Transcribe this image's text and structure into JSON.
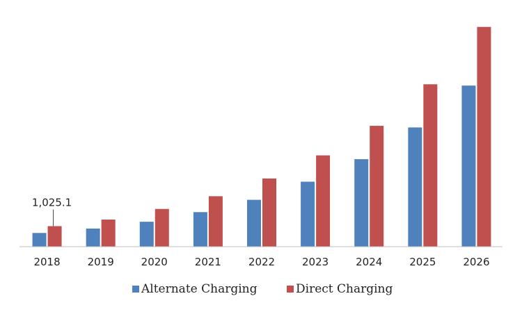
{
  "chart_data": {
    "type": "bar",
    "title": "",
    "xlabel": "",
    "ylabel": "",
    "categories": [
      "2018",
      "2019",
      "2020",
      "2021",
      "2022",
      "2023",
      "2024",
      "2025",
      "2026"
    ],
    "series": [
      {
        "name": "Alternate Charging",
        "color": "#4f81bd",
        "values": [
          685,
          905,
          1245,
          1725,
          2340,
          3245,
          4370,
          5955,
          8045
        ]
      },
      {
        "name": "Direct Charging",
        "color": "#c0504d",
        "values": [
          1025.1,
          1355,
          1885,
          2520,
          3405,
          4560,
          6035,
          8110,
          10975
        ]
      }
    ],
    "annotations": [
      {
        "category": "2018",
        "series": "Direct Charging",
        "text": "1,025.1"
      }
    ],
    "ylim": [
      0,
      11000
    ],
    "grid": false,
    "y_axis_visible": false,
    "legend": "bottom"
  }
}
